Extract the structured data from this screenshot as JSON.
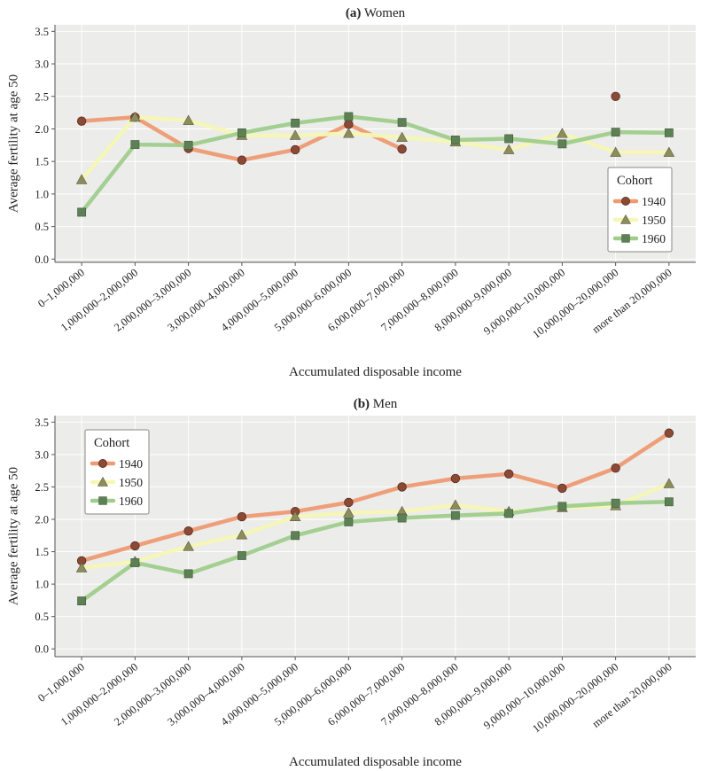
{
  "chart_data": [
    {
      "type": "line",
      "title_prefix": "(a)",
      "title_text": "Women",
      "xlabel": "Accumulated disposable income",
      "ylabel": "Average fertility at age 50",
      "ylim": [
        -0.05,
        3.6
      ],
      "yticks": [
        "0.0",
        "0.5",
        "1.0",
        "1.5",
        "2.0",
        "2.5",
        "3.0",
        "3.5"
      ],
      "categories": [
        "0–1,000,000",
        "1,000,000–2,000,000",
        "2,000,000–3,000,000",
        "3,000,000–4,000,000",
        "4,000,000–5,000,000",
        "5,000,000–6,000,000",
        "6,000,000–7,000,000",
        "7,000,000–8,000,000",
        "8,000,000–9,000,000",
        "9,000,000–10,000,000",
        "10,000,000–20,000,000",
        "more than 20,000,000"
      ],
      "legend_title": "Cohort",
      "legend_position": "right",
      "series": [
        {
          "name": "1940",
          "values": [
            2.12,
            2.18,
            1.7,
            1.52,
            1.68,
            2.07,
            1.69,
            null,
            null,
            null,
            2.5,
            null
          ]
        },
        {
          "name": "1950",
          "values": [
            1.22,
            2.18,
            2.13,
            1.9,
            1.9,
            1.93,
            1.87,
            1.8,
            1.68,
            1.93,
            1.64,
            1.64
          ]
        },
        {
          "name": "1960",
          "values": [
            0.72,
            1.76,
            1.75,
            1.94,
            2.09,
            2.19,
            2.1,
            1.83,
            1.85,
            1.77,
            1.95,
            1.94
          ]
        }
      ]
    },
    {
      "type": "line",
      "title_prefix": "(b)",
      "title_text": "Men",
      "xlabel": "Accumulated disposable income",
      "ylabel": "Average fertility at age 50",
      "ylim": [
        -0.12,
        3.6
      ],
      "yticks": [
        "0.0",
        "0.5",
        "1.0",
        "1.5",
        "2.0",
        "2.5",
        "3.0",
        "3.5"
      ],
      "categories": [
        "0–1,000,000",
        "1,000,000–2,000,000",
        "2,000,000–3,000,000",
        "3,000,000–4,000,000",
        "4,000,000–5,000,000",
        "5,000,000–6,000,000",
        "6,000,000–7,000,000",
        "7,000,000–8,000,000",
        "8,000,000–9,000,000",
        "9,000,000–10,000,000",
        "10,000,000–20,000,000",
        "more than 20,000,000"
      ],
      "legend_title": "Cohort",
      "legend_position": "top-left",
      "series": [
        {
          "name": "1940",
          "values": [
            1.36,
            1.59,
            1.82,
            2.04,
            2.12,
            2.26,
            2.5,
            2.63,
            2.7,
            2.48,
            2.79,
            3.33
          ]
        },
        {
          "name": "1950",
          "values": [
            1.25,
            1.35,
            1.58,
            1.76,
            2.04,
            2.1,
            2.12,
            2.22,
            2.12,
            2.18,
            2.21,
            2.55
          ]
        },
        {
          "name": "1960",
          "values": [
            0.74,
            1.33,
            1.16,
            1.44,
            1.75,
            1.96,
            2.02,
            2.06,
            2.09,
            2.2,
            2.25,
            2.27
          ]
        }
      ]
    }
  ],
  "styles": {
    "panel_bg": "#ececea",
    "axis_color": "#555555",
    "series_1940": {
      "line": "#ee9a72",
      "marker": "#8a4a36",
      "marker_stroke": "#5a2c1e"
    },
    "series_1950": {
      "line": "#f6f7b4",
      "marker": "#8c8c5e",
      "marker_stroke": "#5e5e3c"
    },
    "series_1960": {
      "line": "#9fce8c",
      "marker": "#5e8055",
      "marker_stroke": "#3e5838"
    }
  }
}
